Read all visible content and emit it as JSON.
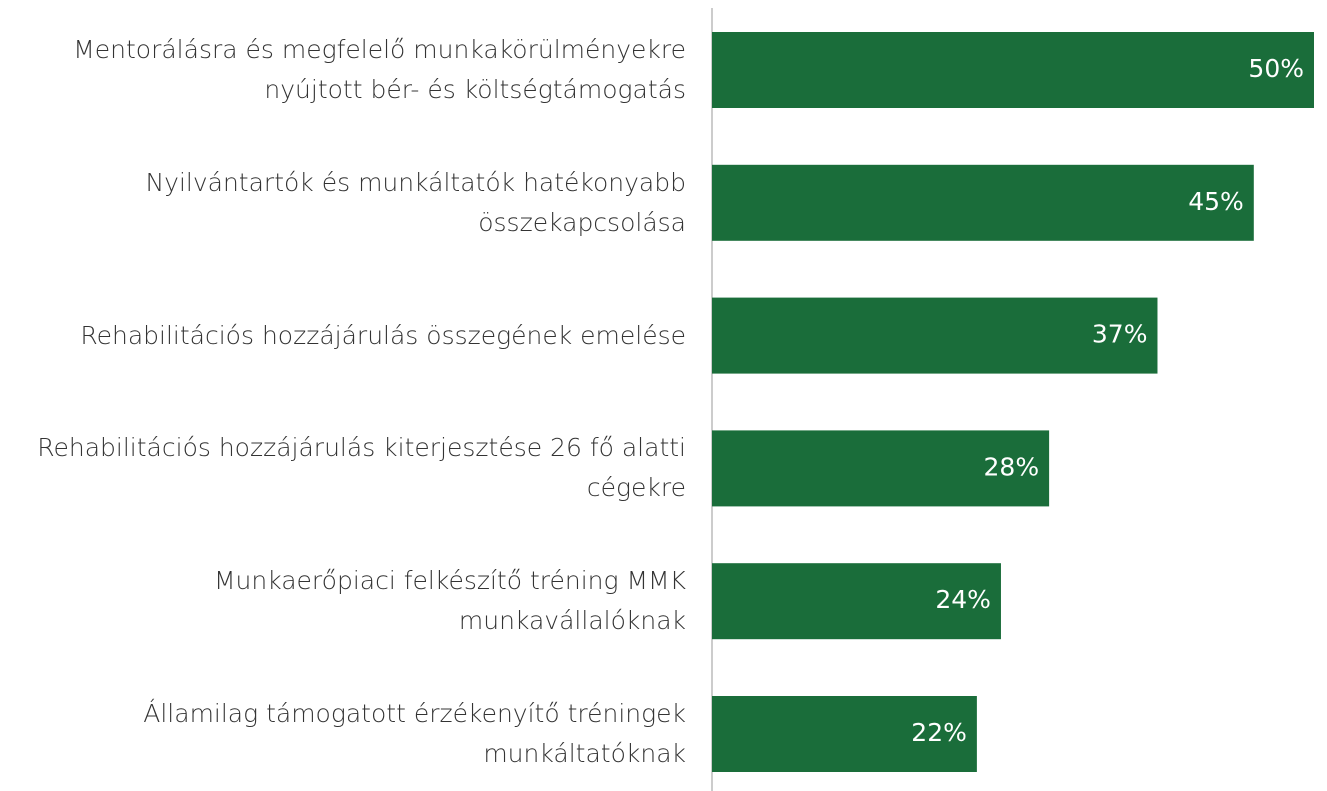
{
  "chart_data": {
    "type": "bar",
    "orientation": "horizontal",
    "categories": [
      "Mentorálásra és megfelelő munkakörülményekre nyújtott bér- és költségtámogatás",
      "Nyilvántartók és munkáltatók hatékonyabb összekapcsolása",
      "Rehabilitációs hozzájárulás összegének emelése",
      "Rehabilitációs hozzájárulás kiterjesztése 26 fő alatti cégekre",
      "Munkaerőpiaci felkészítő tréning MMK munkavállalóknak",
      "Államilag támogatott érzékenyítő tréningek munkáltatóknak"
    ],
    "values": [
      50,
      45,
      37,
      28,
      24,
      22
    ],
    "value_labels": [
      "50%",
      "45%",
      "37%",
      "28%",
      "24%",
      "22%"
    ],
    "color": "#1a6d3a",
    "xlim": [
      0,
      50
    ]
  }
}
